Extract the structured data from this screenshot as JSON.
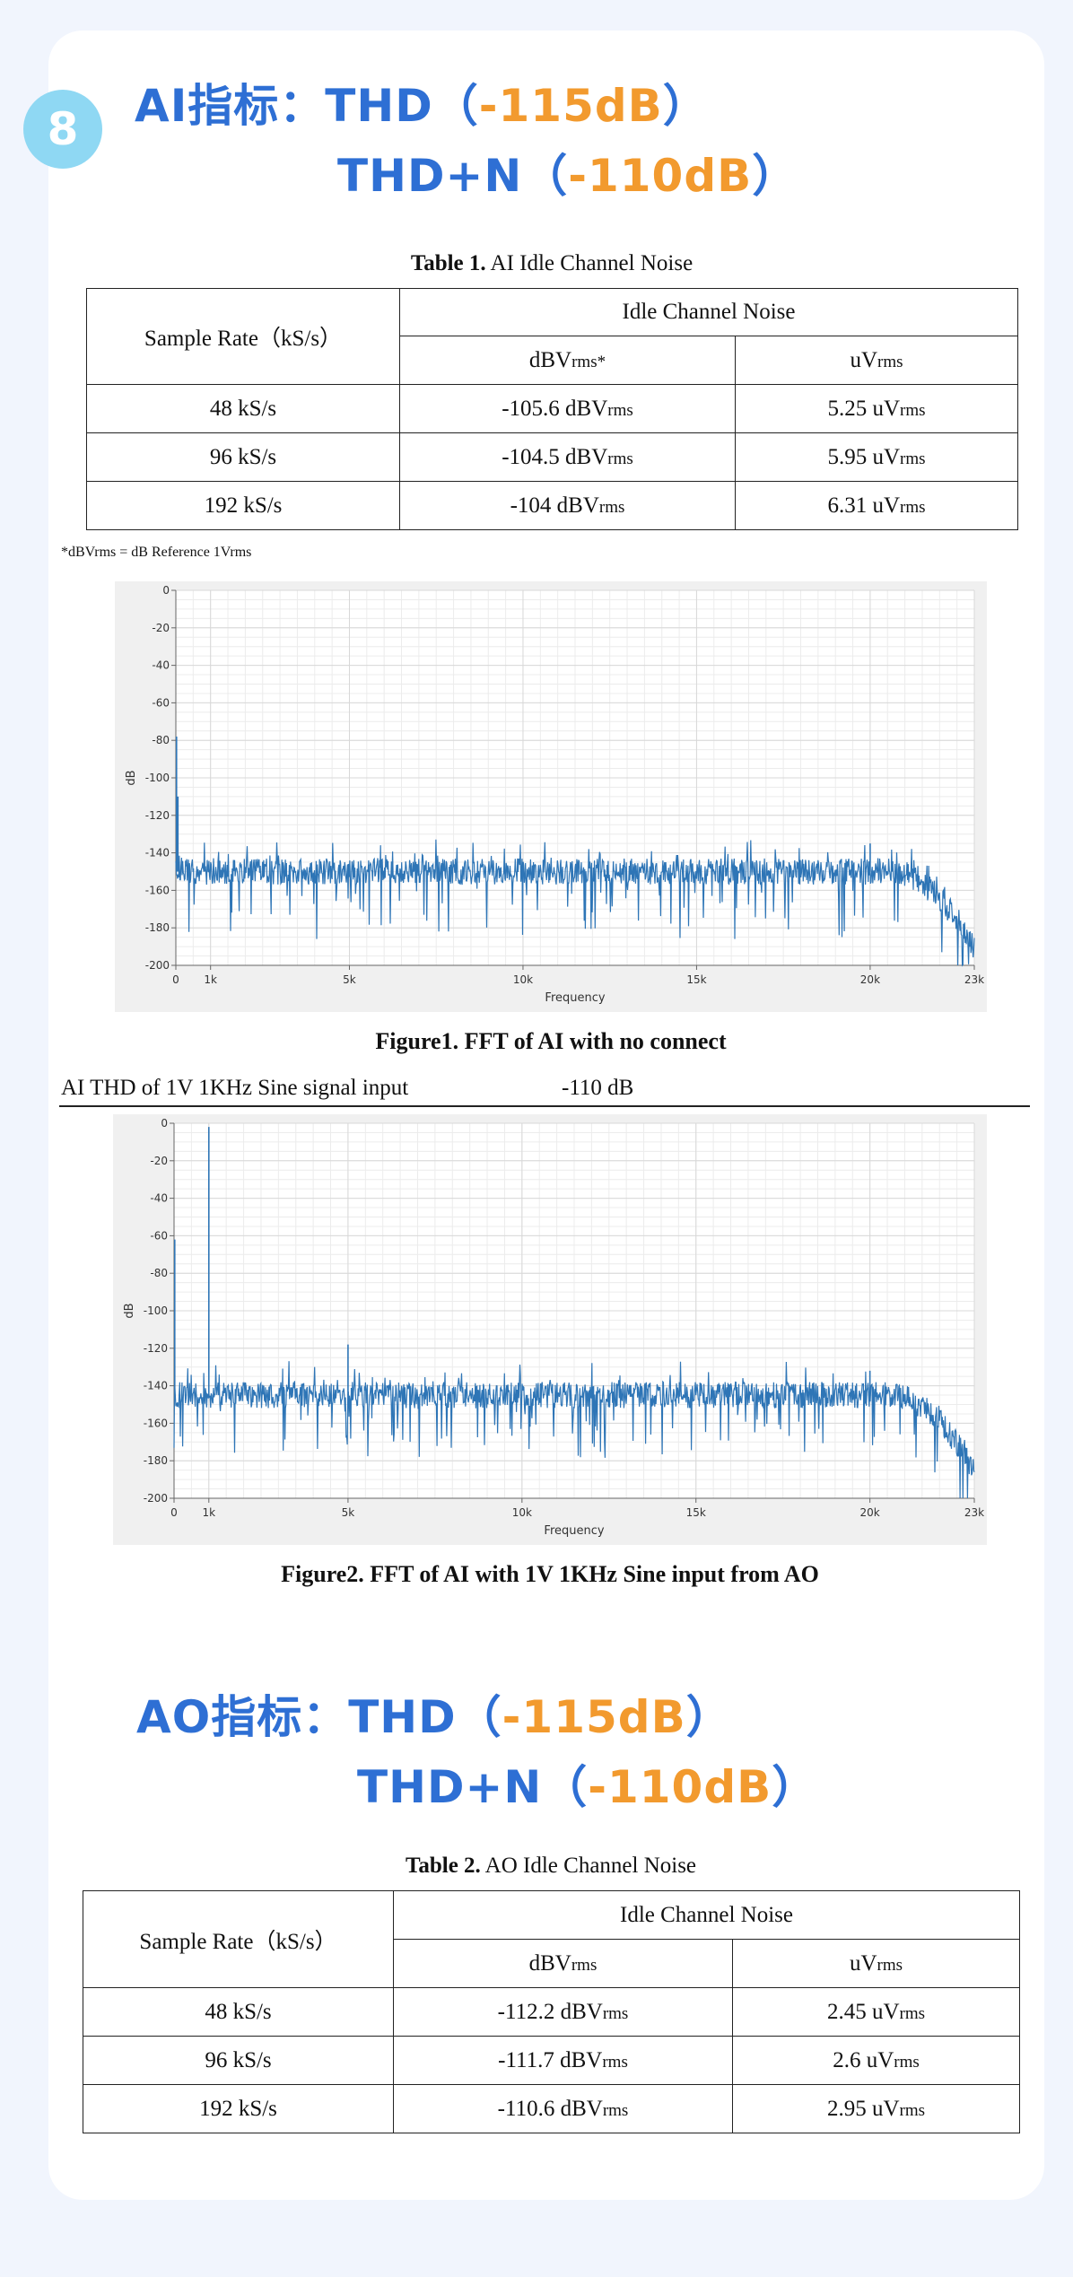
{
  "badge": "8",
  "ai_heading": {
    "line1_prefix": "AI指标：THD（",
    "line1_value": "-115dB",
    "line1_suffix": "）",
    "line2_prefix": "THD+N（",
    "line2_value": "-110dB",
    "line2_suffix": "）"
  },
  "table1": {
    "caption_bold": "Table 1.",
    "caption_text": " AI Idle Channel Noise",
    "col_rate": "Sample Rate（kS/s）",
    "col_group": "Idle Channel Noise",
    "col_dbv": "dBV",
    "col_dbv_sub": "rms*",
    "col_uv": "uV",
    "col_uv_sub": "rms",
    "rows": [
      {
        "rate": "48 kS/s",
        "dbv": "-105.6 dBV",
        "dbv_sub": "rms",
        "uv": "5.25 uV",
        "uv_sub": "rms"
      },
      {
        "rate": "96 kS/s",
        "dbv": "-104.5 dBV",
        "dbv_sub": "rms",
        "uv": "5.95 uV",
        "uv_sub": "rms"
      },
      {
        "rate": "192 kS/s",
        "dbv": "-104 dBV",
        "dbv_sub": "rms",
        "uv": "6.31 uV",
        "uv_sub": "rms"
      }
    ],
    "footnote": "*dBVrms = dB Reference 1Vrms"
  },
  "chart_data": [
    {
      "type": "line",
      "title": "",
      "xlabel": "Frequency",
      "ylabel": "dB",
      "xlim": [
        0,
        23000
      ],
      "ylim": [
        -200,
        0
      ],
      "x_ticks": [
        "0",
        "1k",
        "5k",
        "10k",
        "15k",
        "20k",
        "23k"
      ],
      "y_ticks": [
        "0",
        "-20",
        "-40",
        "-60",
        "-80",
        "-100",
        "-120",
        "-140",
        "-160",
        "-180",
        "-200"
      ],
      "grid": true,
      "series": [
        {
          "color": "#2e75b6",
          "noise_floor_db": -150,
          "spikes": [
            {
              "x": 20,
              "y": -78
            },
            {
              "x": 60,
              "y": -110
            },
            {
              "x": 20000,
              "y": -135
            }
          ]
        }
      ]
    },
    {
      "type": "line",
      "title": "",
      "xlabel": "Frequency",
      "ylabel": "dB",
      "xlim": [
        0,
        23000
      ],
      "ylim": [
        -200,
        0
      ],
      "x_ticks": [
        "0",
        "1k",
        "5k",
        "10k",
        "15k",
        "20k",
        "23k"
      ],
      "y_ticks": [
        "0",
        "-20",
        "-40",
        "-60",
        "-80",
        "-100",
        "-120",
        "-140",
        "-160",
        "-180",
        "-200"
      ],
      "grid": true,
      "series": [
        {
          "color": "#2e75b6",
          "noise_floor_db": -145,
          "spikes": [
            {
              "x": 20,
              "y": -62
            },
            {
              "x": 1000,
              "y": -2
            },
            {
              "x": 5000,
              "y": -118
            },
            {
              "x": 20000,
              "y": -132
            }
          ]
        }
      ]
    }
  ],
  "figure1_caption": "Figure1. FFT of AI with no connect",
  "thd_row": {
    "label": "AI THD of 1V 1KHz Sine signal input",
    "value": "-110 dB"
  },
  "figure2_caption": "Figure2. FFT of AI with 1V 1KHz Sine input from AO",
  "ao_heading": {
    "line1_prefix": "AO指标：THD（",
    "line1_value": "-115dB",
    "line1_suffix": "）",
    "line2_prefix": "THD+N（",
    "line2_value": "-110dB",
    "line2_suffix": "）"
  },
  "table2": {
    "caption_bold": "Table 2.",
    "caption_text": " AO Idle Channel Noise",
    "col_rate": "Sample Rate（kS/s）",
    "col_group": "Idle Channel Noise",
    "col_dbv": "dBV",
    "col_dbv_sub": "rms",
    "col_uv": "uV",
    "col_uv_sub": "rms",
    "rows": [
      {
        "rate": "48 kS/s",
        "dbv": "-112.2 dBV",
        "dbv_sub": "rms",
        "uv": "2.45 uV",
        "uv_sub": "rms"
      },
      {
        "rate": "96 kS/s",
        "dbv": "-111.7 dBV",
        "dbv_sub": "rms",
        "uv": "2.6 uV",
        "uv_sub": "rms"
      },
      {
        "rate": "192 kS/s",
        "dbv": "-110.6 dBV",
        "dbv_sub": "rms",
        "uv": "2.95 uV",
        "uv_sub": "rms"
      }
    ]
  }
}
